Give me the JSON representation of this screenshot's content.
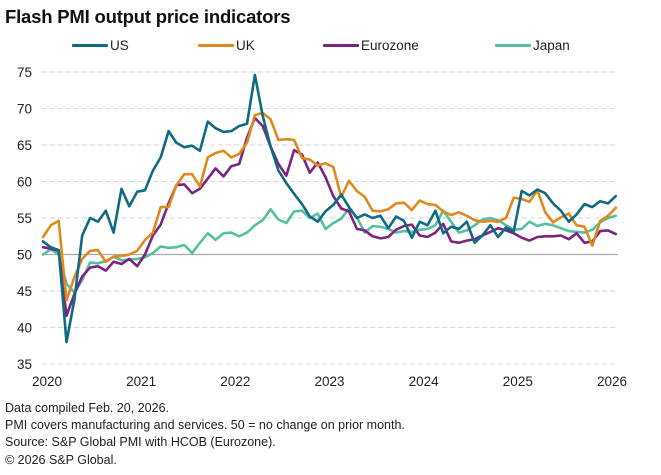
{
  "chart_data": {
    "type": "line",
    "title": "Flash PMI output price indicators",
    "xlabel": "",
    "ylabel": "",
    "ylim": [
      35,
      75
    ],
    "yticks": [
      35,
      40,
      45,
      50,
      55,
      60,
      65,
      70,
      75
    ],
    "xticks": [
      "2020",
      "2021",
      "2022",
      "2023",
      "2024",
      "2025",
      "2026"
    ],
    "x_start": "2020-01",
    "x_end": "2026-02",
    "frequency": "monthly",
    "reference_line": 50,
    "grid": true,
    "legend_position": "top",
    "series": [
      {
        "name": "US",
        "color": "#0e6b82",
        "values": [
          51.8,
          51.0,
          50.6,
          38.0,
          43.8,
          52.6,
          55.0,
          54.5,
          56.0,
          53.0,
          59.0,
          56.6,
          58.6,
          58.8,
          61.5,
          63.3,
          66.9,
          65.3,
          64.7,
          64.9,
          64.2,
          68.2,
          67.3,
          66.8,
          66.9,
          67.6,
          67.9,
          74.6,
          69.0,
          64.8,
          61.5,
          59.8,
          58.3,
          56.9,
          55.2,
          54.5,
          55.9,
          56.8,
          58.2,
          56.5,
          55.0,
          55.5,
          55.0,
          55.3,
          53.6,
          55.2,
          54.6,
          52.3,
          54.5,
          54.0,
          56.0,
          52.9,
          53.8,
          53.5,
          54.5,
          51.6,
          52.6,
          54.0,
          52.4,
          53.7,
          53.2,
          58.7,
          58.1,
          58.9,
          58.4,
          57.0,
          56.0,
          54.5,
          55.5,
          56.9,
          56.5,
          57.3,
          57.0,
          58.0
        ]
      },
      {
        "name": "UK",
        "color": "#e0891d",
        "values": [
          52.4,
          54.0,
          54.6,
          43.7,
          46.9,
          49.4,
          50.5,
          50.6,
          49.0,
          49.7,
          49.8,
          50.0,
          50.5,
          52.0,
          53.0,
          56.5,
          56.5,
          59.5,
          61.0,
          61.0,
          59.3,
          63.3,
          63.9,
          64.2,
          63.3,
          63.8,
          65.3,
          69.1,
          69.4,
          68.5,
          65.7,
          65.8,
          65.7,
          63.2,
          63.0,
          62.2,
          62.5,
          62.0,
          57.9,
          60.1,
          58.7,
          57.9,
          56.0,
          55.9,
          56.2,
          57.0,
          57.1,
          56.1,
          57.4,
          56.9,
          56.8,
          55.9,
          55.4,
          55.8,
          55.3,
          54.7,
          54.5,
          54.6,
          54.5,
          55.0,
          57.8,
          57.6,
          57.2,
          58.8,
          55.8,
          54.4,
          55.1,
          55.6,
          54.0,
          53.8,
          51.2,
          54.6,
          55.3,
          56.4
        ]
      },
      {
        "name": "Eurozone",
        "color": "#7b2481",
        "values": [
          51.0,
          50.8,
          50.5,
          41.6,
          44.6,
          47.0,
          48.2,
          48.4,
          47.8,
          49.0,
          48.7,
          49.4,
          48.4,
          50.0,
          52.6,
          54.1,
          57.0,
          59.5,
          59.6,
          58.4,
          59.0,
          60.4,
          61.8,
          60.7,
          62.1,
          62.4,
          66.0,
          68.7,
          67.6,
          64.8,
          62.4,
          60.8,
          64.3,
          63.7,
          61.2,
          62.6,
          60.6,
          58.0,
          56.3,
          55.9,
          53.5,
          53.3,
          52.5,
          52.2,
          52.4,
          53.4,
          53.9,
          54.1,
          52.6,
          52.4,
          53.0,
          54.2,
          51.8,
          51.6,
          51.9,
          52.1,
          52.6,
          53.1,
          53.6,
          53.3,
          52.9,
          52.3,
          51.9,
          52.4,
          52.5,
          52.5,
          52.6,
          52.1,
          52.9,
          51.6,
          51.8,
          53.2,
          53.3,
          52.8
        ]
      },
      {
        "name": "Japan",
        "color": "#55c0a0",
        "values": [
          50.0,
          50.7,
          50.0,
          46.0,
          44.8,
          46.5,
          48.9,
          48.8,
          49.1,
          49.7,
          49.2,
          49.3,
          49.4,
          49.6,
          50.2,
          51.1,
          50.9,
          51.0,
          51.3,
          50.2,
          51.6,
          52.9,
          52.0,
          52.9,
          53.0,
          52.5,
          53.0,
          54.0,
          54.7,
          56.2,
          54.8,
          54.3,
          55.9,
          56.0,
          55.0,
          55.6,
          53.5,
          54.3,
          54.9,
          56.3,
          55.1,
          53.0,
          53.9,
          53.8,
          53.5,
          53.0,
          53.2,
          53.1,
          53.4,
          53.5,
          54.0,
          56.0,
          54.5,
          53.0,
          53.3,
          54.0,
          54.8,
          55.0,
          54.7,
          54.0,
          53.4,
          53.5,
          54.5,
          53.9,
          54.2,
          54.0,
          53.6,
          53.2,
          53.1,
          53.0,
          53.4,
          54.4,
          55.0,
          55.3
        ]
      }
    ]
  },
  "footer": {
    "compiled": "Data compiled Feb. 20, 2026.",
    "note": "PMI covers manufacturing and services. 50 = no change on prior month.",
    "source": "Source: S&P Global PMI with HCOB (Eurozone).",
    "copyright": "© 2026 S&P Global."
  }
}
